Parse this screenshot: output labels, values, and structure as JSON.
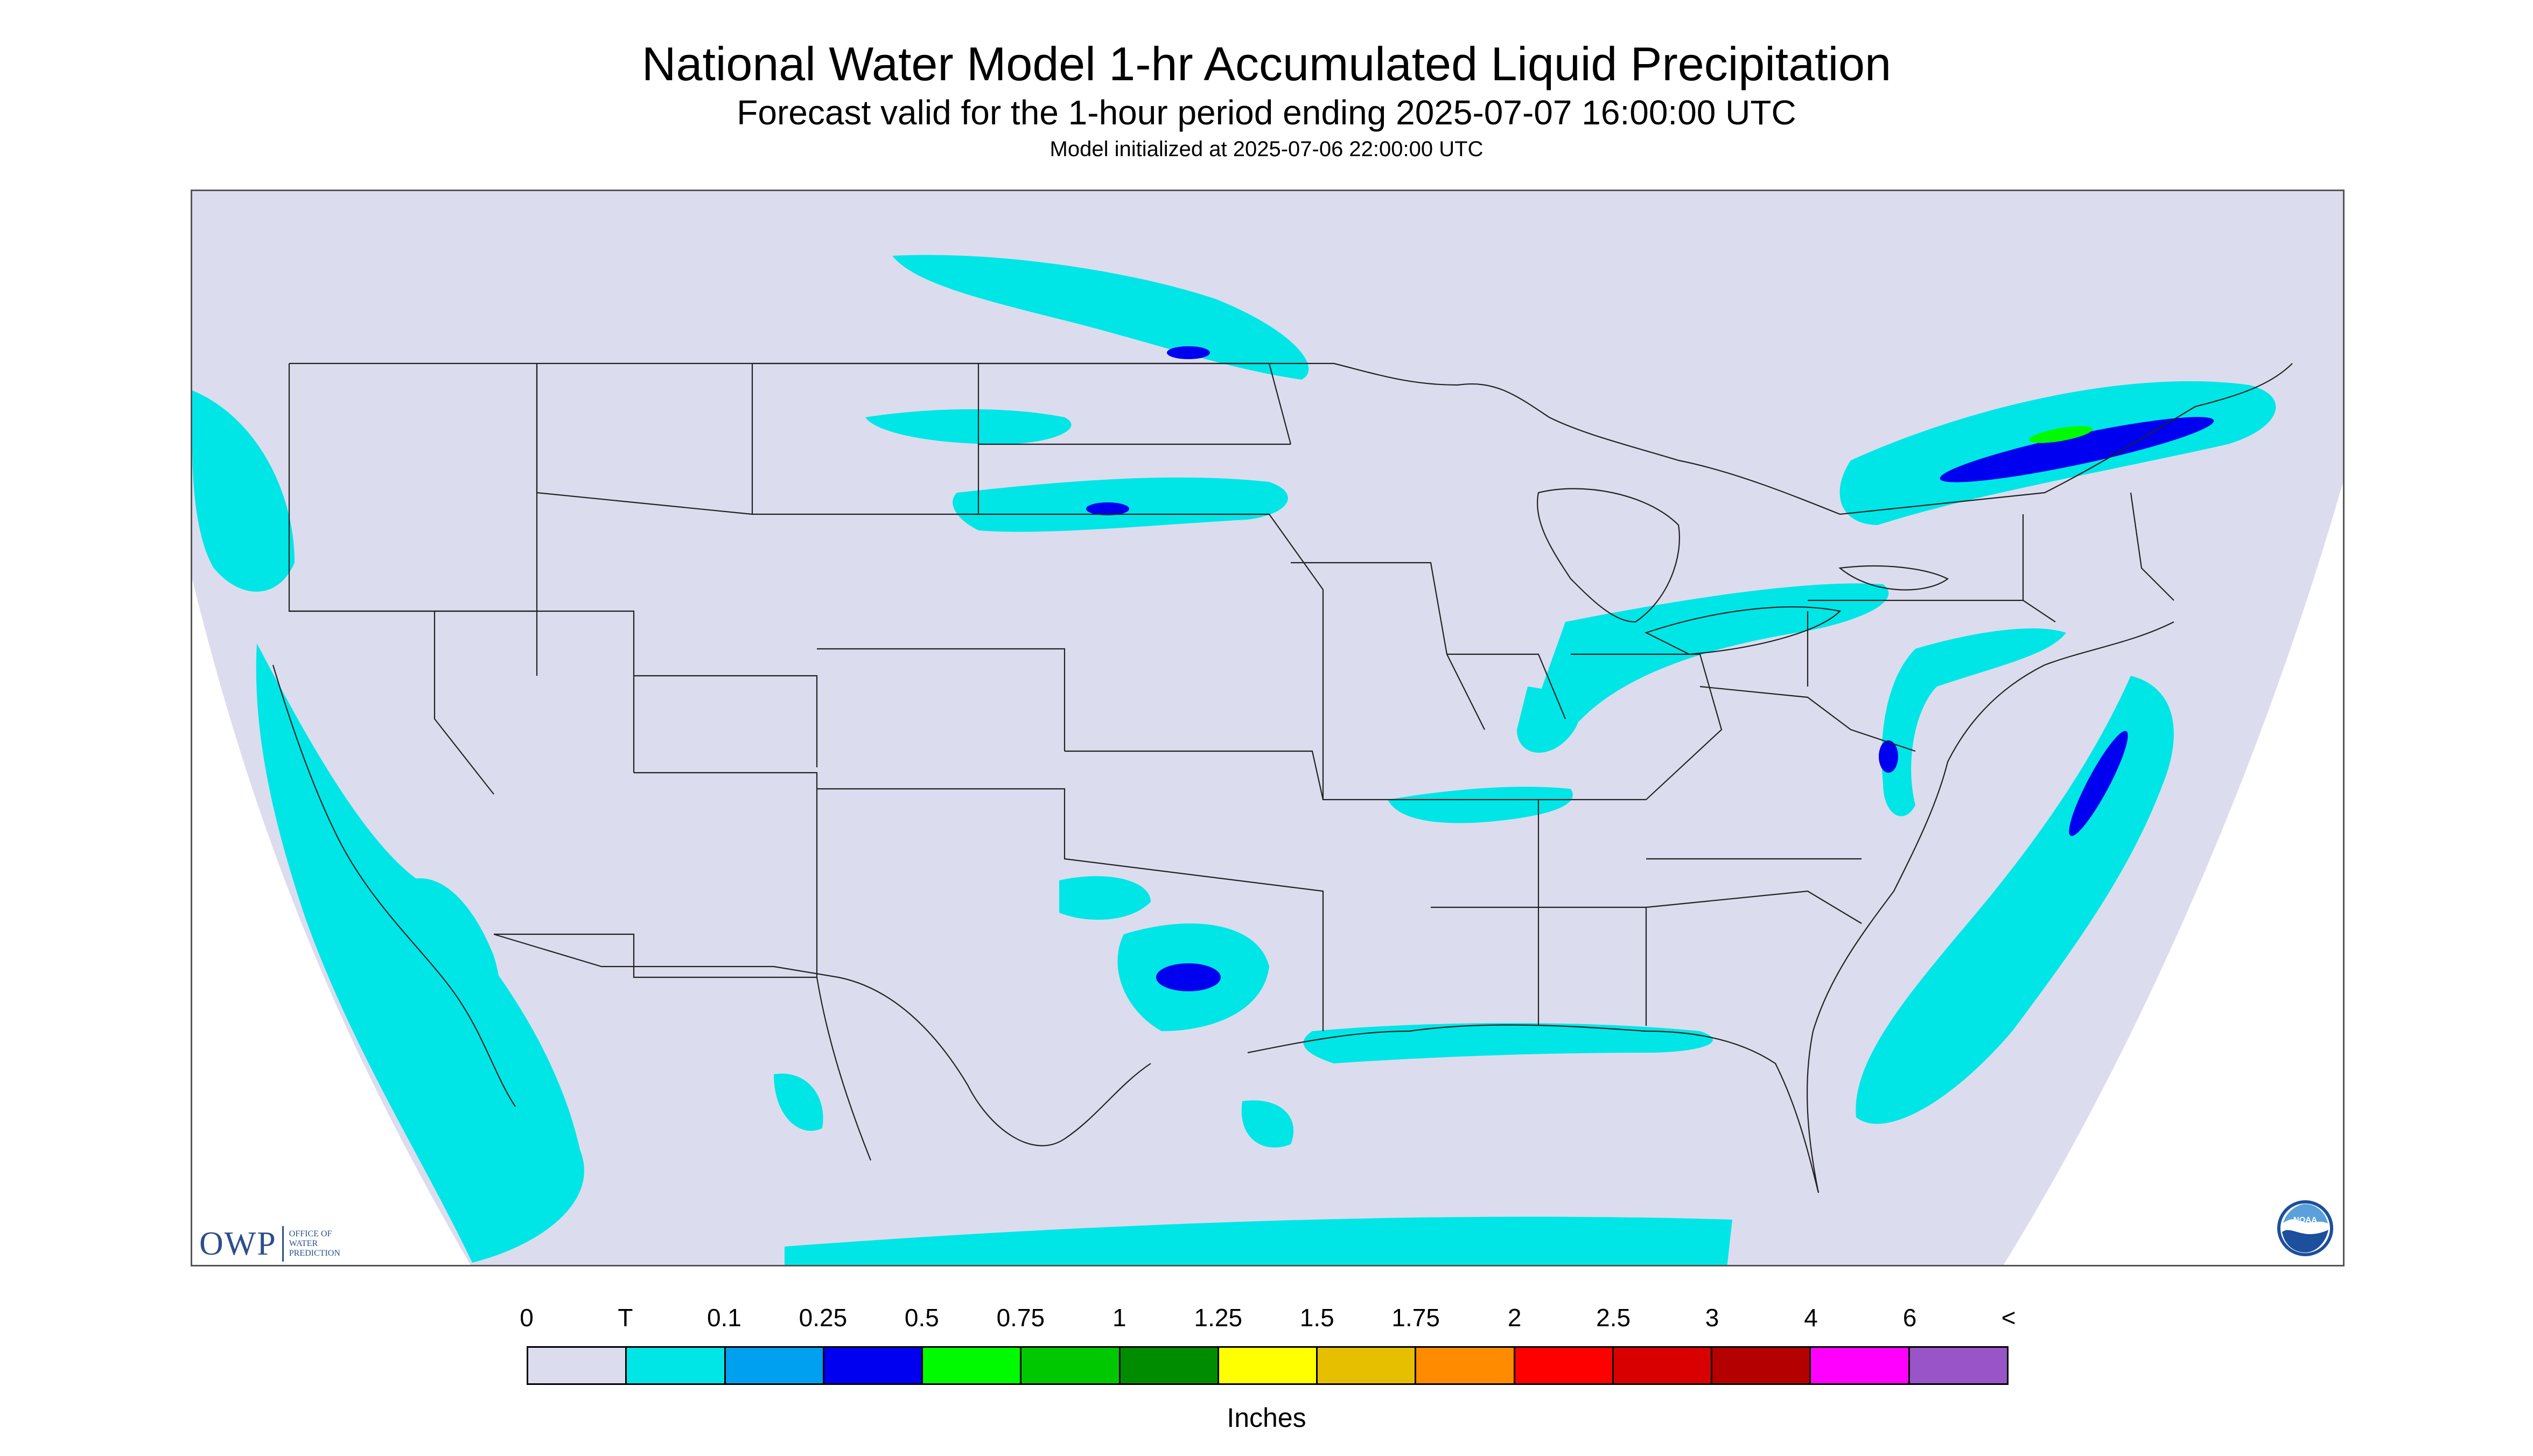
{
  "header": {
    "title": "National Water Model 1-hr Accumulated Liquid Precipitation",
    "subtitle": "Forecast valid for the 1-hour period ending 2025-07-07 16:00:00 UTC",
    "init_line": "Model initialized at 2025-07-06 22:00:00 UTC"
  },
  "logos": {
    "owp_letters": "OWP",
    "owp_sub": [
      "OFFICE OF",
      "WATER",
      "PREDICTION"
    ],
    "noaa_text": "NOAA"
  },
  "colors": {
    "background_fill": "#dcdcef",
    "no_data": "#ffffff",
    "borders": "#222222"
  },
  "legend": {
    "labels": [
      "0",
      "T",
      "0.1",
      "0.25",
      "0.5",
      "0.75",
      "1",
      "1.25",
      "1.5",
      "1.75",
      "2",
      "2.5",
      "3",
      "4",
      "6",
      "<"
    ],
    "colors": [
      "#dcdcef",
      "#00e6e6",
      "#00a0f0",
      "#0000f0",
      "#00fa00",
      "#00c800",
      "#008c00",
      "#ffff00",
      "#e6c000",
      "#ff8c00",
      "#ff0000",
      "#d80000",
      "#b40000",
      "#ff00ff",
      "#9955c8"
    ],
    "units": "Inches"
  }
}
